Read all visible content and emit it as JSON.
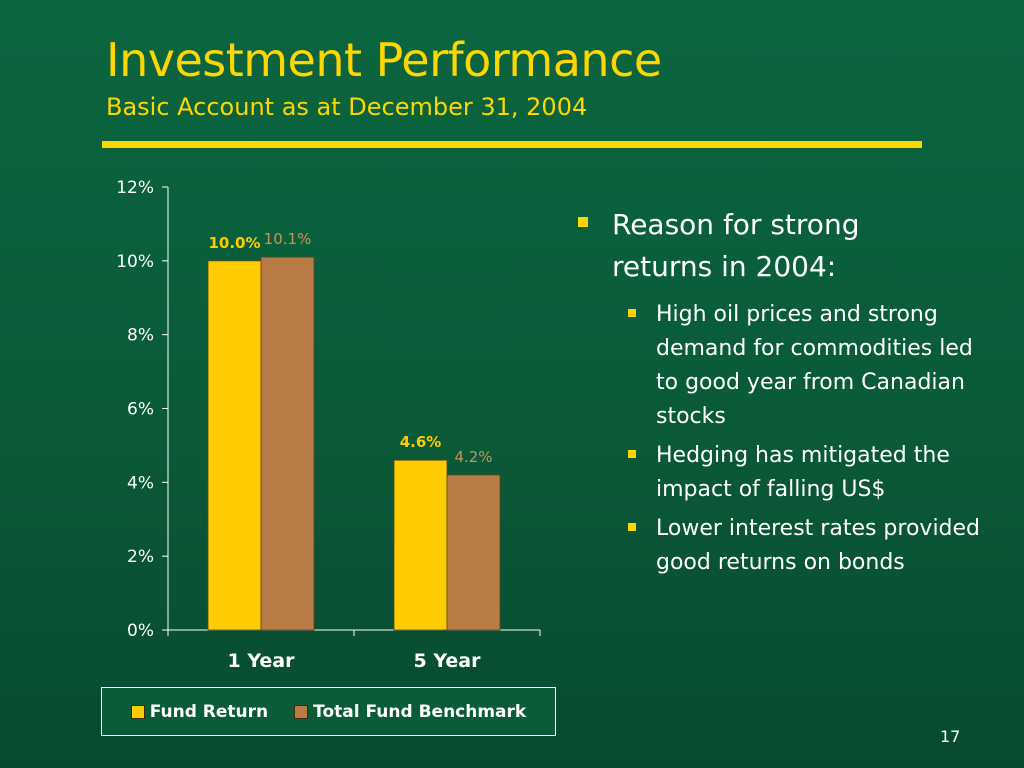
{
  "slide": {
    "title": "Investment Performance",
    "subtitle": "Basic Account as at December 31, 2004",
    "page_number": "17",
    "accent_color": "#ffd700"
  },
  "bullets": {
    "main": "Reason for strong returns in 2004:",
    "sub": [
      "High oil prices and strong demand for commodities led to good year from Canadian stocks",
      "Hedging has mitigated the impact of falling US$",
      "Lower interest rates provided good returns on bonds"
    ]
  },
  "legend": {
    "items": [
      {
        "label": "Fund Return",
        "color": "#ffcc00"
      },
      {
        "label": "Total Fund Benchmark",
        "color": "#b87c44"
      }
    ]
  },
  "chart_data": {
    "type": "bar",
    "categories": [
      "1 Year",
      "5 Year"
    ],
    "series": [
      {
        "name": "Fund Return",
        "values": [
          10.0,
          4.6
        ],
        "labels": [
          "10.0%",
          "4.6%"
        ],
        "color": "#ffcc00",
        "label_color": "#ffcc00"
      },
      {
        "name": "Total Fund Benchmark",
        "values": [
          10.1,
          4.2
        ],
        "labels": [
          "10.1%",
          "4.2%"
        ],
        "color": "#b87c44",
        "label_color": "#c8945a"
      }
    ],
    "ylim": [
      0,
      12
    ],
    "yticks": [
      0,
      2,
      4,
      6,
      8,
      10,
      12
    ],
    "ytick_labels": [
      "0%",
      "2%",
      "4%",
      "6%",
      "8%",
      "10%",
      "12%"
    ],
    "xlabel": "",
    "ylabel": "",
    "grid": false,
    "legend_position": "bottom"
  }
}
